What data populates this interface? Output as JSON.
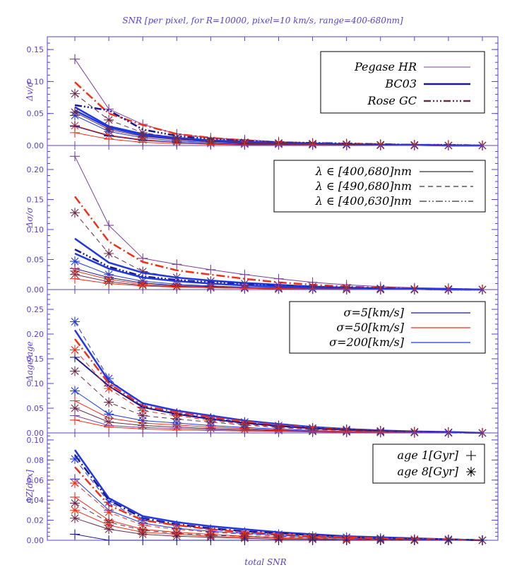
{
  "title": "SNR [per pixel, for R=10000, pixel=10 km/s, range=400-680nm]",
  "xlabel": "total SNR",
  "colors": {
    "axis": "#5a3fd0",
    "purple": "#7b3f9e",
    "navy": "#1a1a8c",
    "red": "#f03018",
    "blue": "#2038e0",
    "brown": "#6b2a4a"
  },
  "legends": {
    "models": [
      "Pegase HR",
      "BC03",
      "Rose GC"
    ],
    "ranges": [
      "λ ∈ [400,680]nm",
      "λ ∈ [490,680]nm",
      "λ ∈ [400,630]nm"
    ],
    "sigmas": [
      "σ=5[km/s]",
      "σ=50[km/s]",
      "σ=200[km/s]"
    ],
    "ages": [
      "age 1[Gyr]",
      "age 8[Gyr]"
    ]
  },
  "chart_data": [
    {
      "type": "line",
      "ylabel": "Δv/σ",
      "ylim": [
        0,
        0.17
      ],
      "yticks": [
        "0.00",
        "0.05",
        "0.10",
        "0.15"
      ],
      "x": [
        1,
        2,
        3,
        4,
        5,
        6,
        7,
        8,
        9,
        10,
        11,
        12,
        13
      ],
      "series": [
        {
          "color": "purple",
          "style": "solid",
          "width": 1,
          "marker": "plus",
          "values": [
            0.135,
            0.057,
            0.033,
            0.018,
            0.012,
            0.009,
            0.006,
            0.004,
            0.003,
            0.002,
            0.001,
            0.001,
            0.0
          ]
        },
        {
          "color": "red",
          "style": "dashdot",
          "width": 2.5,
          "marker": "none",
          "values": [
            0.099,
            0.05,
            0.032,
            0.018,
            0.012,
            0.008,
            0.005,
            0.004,
            0.003,
            0.002,
            0.001,
            0.001,
            0.0
          ]
        },
        {
          "color": "navy",
          "style": "dashdot3",
          "width": 2.5,
          "marker": "none",
          "values": [
            0.063,
            0.055,
            0.025,
            0.015,
            0.01,
            0.007,
            0.005,
            0.004,
            0.003,
            0.002,
            0.001,
            0.001,
            0.0
          ]
        },
        {
          "color": "blue",
          "style": "solid",
          "width": 2.5,
          "marker": "none",
          "values": [
            0.06,
            0.03,
            0.018,
            0.012,
            0.008,
            0.006,
            0.004,
            0.003,
            0.002,
            0.001,
            0.001,
            0.0,
            0.0
          ]
        },
        {
          "color": "blue",
          "style": "solid",
          "width": 2.5,
          "marker": "none",
          "values": [
            0.055,
            0.028,
            0.016,
            0.01,
            0.007,
            0.005,
            0.003,
            0.002,
            0.002,
            0.001,
            0.001,
            0.0,
            0.0
          ]
        },
        {
          "color": "brown",
          "style": "dashed",
          "width": 1,
          "marker": "star",
          "values": [
            0.081,
            0.04,
            0.02,
            0.012,
            0.008,
            0.005,
            0.004,
            0.003,
            0.002,
            0.001,
            0.001,
            0.0,
            0.0
          ]
        },
        {
          "color": "blue",
          "style": "solid",
          "width": 1,
          "marker": "star",
          "values": [
            0.047,
            0.022,
            0.012,
            0.007,
            0.005,
            0.003,
            0.002,
            0.002,
            0.001,
            0.001,
            0.0,
            0.0,
            0.0
          ]
        },
        {
          "color": "red",
          "style": "solid",
          "width": 1,
          "marker": "star",
          "values": [
            0.031,
            0.016,
            0.009,
            0.005,
            0.003,
            0.002,
            0.002,
            0.001,
            0.001,
            0.0,
            0.0,
            0.0,
            0.0
          ]
        },
        {
          "color": "navy",
          "style": "solid",
          "width": 1,
          "marker": "plus",
          "values": [
            0.03,
            0.015,
            0.008,
            0.005,
            0.003,
            0.002,
            0.002,
            0.001,
            0.001,
            0.0,
            0.0,
            0.0,
            0.0
          ]
        },
        {
          "color": "brown",
          "style": "solid",
          "width": 1,
          "marker": "star",
          "values": [
            0.052,
            0.025,
            0.014,
            0.009,
            0.006,
            0.004,
            0.003,
            0.002,
            0.001,
            0.001,
            0.0,
            0.0,
            0.0
          ]
        },
        {
          "color": "red",
          "style": "solid",
          "width": 1,
          "marker": "plus",
          "values": [
            0.02,
            0.01,
            0.005,
            0.003,
            0.002,
            0.001,
            0.001,
            0.001,
            0.0,
            0.0,
            0.0,
            0.0,
            0.0
          ]
        }
      ]
    },
    {
      "type": "line",
      "ylabel": "Δσ/σ",
      "ylim": [
        0,
        0.24
      ],
      "yticks": [
        "0.00",
        "0.05",
        "0.10",
        "0.15",
        "0.20"
      ],
      "x": [
        1,
        2,
        3,
        4,
        5,
        6,
        7,
        8,
        9,
        10,
        11,
        12,
        13
      ],
      "series": [
        {
          "color": "purple",
          "style": "solid",
          "width": 1,
          "marker": "plus",
          "values": [
            0.222,
            0.107,
            0.052,
            0.042,
            0.033,
            0.025,
            0.018,
            0.012,
            0.008,
            0.005,
            0.003,
            0.002,
            0.0
          ]
        },
        {
          "color": "red",
          "style": "dashdot",
          "width": 2.5,
          "marker": "none",
          "values": [
            0.155,
            0.08,
            0.046,
            0.032,
            0.025,
            0.018,
            0.012,
            0.008,
            0.005,
            0.003,
            0.002,
            0.001,
            0.0
          ]
        },
        {
          "color": "brown",
          "style": "dashed",
          "width": 1,
          "marker": "star",
          "values": [
            0.128,
            0.06,
            0.03,
            0.02,
            0.014,
            0.01,
            0.007,
            0.005,
            0.003,
            0.002,
            0.001,
            0.001,
            0.0
          ]
        },
        {
          "color": "blue",
          "style": "solid",
          "width": 2.5,
          "marker": "none",
          "values": [
            0.085,
            0.045,
            0.028,
            0.02,
            0.015,
            0.011,
            0.008,
            0.005,
            0.003,
            0.002,
            0.001,
            0.001,
            0.0
          ]
        },
        {
          "color": "navy",
          "style": "dashdot3",
          "width": 2.5,
          "marker": "none",
          "values": [
            0.067,
            0.038,
            0.022,
            0.016,
            0.012,
            0.009,
            0.006,
            0.004,
            0.003,
            0.002,
            0.001,
            0.0,
            0.0
          ]
        },
        {
          "color": "blue",
          "style": "solid",
          "width": 2.5,
          "marker": "none",
          "values": [
            0.06,
            0.035,
            0.02,
            0.014,
            0.01,
            0.007,
            0.005,
            0.003,
            0.002,
            0.001,
            0.001,
            0.0,
            0.0
          ]
        },
        {
          "color": "blue",
          "style": "solid",
          "width": 1,
          "marker": "star",
          "values": [
            0.047,
            0.025,
            0.014,
            0.009,
            0.006,
            0.004,
            0.003,
            0.002,
            0.001,
            0.001,
            0.0,
            0.0,
            0.0
          ]
        },
        {
          "color": "navy",
          "style": "solid",
          "width": 1,
          "marker": "plus",
          "values": [
            0.035,
            0.02,
            0.011,
            0.007,
            0.005,
            0.003,
            0.002,
            0.001,
            0.001,
            0.0,
            0.0,
            0.0,
            0.0
          ]
        },
        {
          "color": "red",
          "style": "solid",
          "width": 1,
          "marker": "star",
          "values": [
            0.031,
            0.017,
            0.009,
            0.006,
            0.004,
            0.003,
            0.002,
            0.001,
            0.001,
            0.0,
            0.0,
            0.0,
            0.0
          ]
        },
        {
          "color": "brown",
          "style": "solid",
          "width": 1,
          "marker": "star",
          "values": [
            0.025,
            0.013,
            0.007,
            0.005,
            0.003,
            0.002,
            0.001,
            0.001,
            0.0,
            0.0,
            0.0,
            0.0,
            0.0
          ]
        },
        {
          "color": "red",
          "style": "solid",
          "width": 1,
          "marker": "plus",
          "values": [
            0.018,
            0.01,
            0.006,
            0.004,
            0.003,
            0.002,
            0.001,
            0.001,
            0.0,
            0.0,
            0.0,
            0.0,
            0.0
          ]
        }
      ]
    },
    {
      "type": "line",
      "ylabel": "Δage/age",
      "ylim": [
        0,
        0.29
      ],
      "yticks": [
        "0.00",
        "0.05",
        "0.10",
        "0.15",
        "0.20",
        "0.25"
      ],
      "x": [
        1,
        2,
        3,
        4,
        5,
        6,
        7,
        8,
        9,
        10,
        11,
        12,
        13
      ],
      "series": [
        {
          "color": "blue",
          "style": "solid",
          "width": 2.5,
          "marker": "none",
          "values": [
            0.208,
            0.105,
            0.06,
            0.045,
            0.035,
            0.025,
            0.018,
            0.012,
            0.008,
            0.005,
            0.003,
            0.002,
            0.0
          ]
        },
        {
          "color": "blue",
          "style": "dashed",
          "width": 1,
          "marker": "star",
          "values": [
            0.225,
            0.11,
            0.052,
            0.04,
            0.03,
            0.022,
            0.015,
            0.01,
            0.007,
            0.004,
            0.002,
            0.001,
            0.0
          ]
        },
        {
          "color": "red",
          "style": "dashdot",
          "width": 2.5,
          "marker": "none",
          "values": [
            0.19,
            0.1,
            0.055,
            0.042,
            0.032,
            0.023,
            0.016,
            0.011,
            0.007,
            0.004,
            0.002,
            0.001,
            0.0
          ]
        },
        {
          "color": "navy",
          "style": "solid",
          "width": 2,
          "marker": "plus",
          "values": [
            0.153,
            0.095,
            0.052,
            0.038,
            0.028,
            0.02,
            0.014,
            0.009,
            0.006,
            0.004,
            0.002,
            0.001,
            0.0
          ]
        },
        {
          "color": "red",
          "style": "dashed",
          "width": 1,
          "marker": "star",
          "values": [
            0.168,
            0.09,
            0.045,
            0.035,
            0.025,
            0.018,
            0.012,
            0.008,
            0.005,
            0.003,
            0.002,
            0.001,
            0.0
          ]
        },
        {
          "color": "brown",
          "style": "dashed",
          "width": 1,
          "marker": "star",
          "values": [
            0.125,
            0.062,
            0.035,
            0.028,
            0.022,
            0.016,
            0.011,
            0.007,
            0.005,
            0.003,
            0.002,
            0.001,
            0.0
          ]
        },
        {
          "color": "blue",
          "style": "solid",
          "width": 1,
          "marker": "star",
          "values": [
            0.085,
            0.038,
            0.025,
            0.02,
            0.015,
            0.011,
            0.008,
            0.005,
            0.003,
            0.002,
            0.001,
            0.001,
            0.0
          ]
        },
        {
          "color": "red",
          "style": "solid",
          "width": 1,
          "marker": "plus",
          "values": [
            0.065,
            0.03,
            0.02,
            0.016,
            0.012,
            0.009,
            0.006,
            0.004,
            0.003,
            0.002,
            0.001,
            0.0,
            0.0
          ]
        },
        {
          "color": "brown",
          "style": "solid",
          "width": 1,
          "marker": "star",
          "values": [
            0.05,
            0.022,
            0.015,
            0.012,
            0.009,
            0.007,
            0.005,
            0.003,
            0.002,
            0.001,
            0.001,
            0.0,
            0.0
          ]
        },
        {
          "color": "purple",
          "style": "solid",
          "width": 1,
          "marker": "plus",
          "values": [
            0.035,
            0.015,
            0.011,
            0.009,
            0.007,
            0.005,
            0.004,
            0.003,
            0.002,
            0.001,
            0.001,
            0.0,
            0.0
          ]
        },
        {
          "color": "red",
          "style": "solid",
          "width": 1,
          "marker": "plus",
          "values": [
            0.026,
            0.012,
            0.008,
            0.006,
            0.005,
            0.004,
            0.003,
            0.002,
            0.001,
            0.001,
            0.0,
            0.0,
            0.0
          ]
        }
      ]
    },
    {
      "type": "line",
      "ylabel": "ΔZ[dex]",
      "ylim": [
        0,
        0.107
      ],
      "yticks": [
        "0.00",
        "0.02",
        "0.04",
        "0.06",
        "0.08",
        "0.10"
      ],
      "x": [
        1,
        2,
        3,
        4,
        5,
        6,
        7,
        8,
        9,
        10,
        11,
        12,
        13
      ],
      "series": [
        {
          "color": "blue",
          "style": "solid",
          "width": 2.5,
          "marker": "none",
          "values": [
            0.09,
            0.042,
            0.024,
            0.018,
            0.014,
            0.011,
            0.008,
            0.006,
            0.004,
            0.003,
            0.002,
            0.001,
            0.0
          ]
        },
        {
          "color": "navy",
          "style": "dashdot",
          "width": 2.5,
          "marker": "none",
          "values": [
            0.085,
            0.04,
            0.022,
            0.016,
            0.012,
            0.009,
            0.007,
            0.005,
            0.003,
            0.002,
            0.001,
            0.001,
            0.0
          ]
        },
        {
          "color": "blue",
          "style": "dashed",
          "width": 1,
          "marker": "star",
          "values": [
            0.081,
            0.038,
            0.02,
            0.015,
            0.011,
            0.008,
            0.006,
            0.004,
            0.003,
            0.002,
            0.001,
            0.001,
            0.0
          ]
        },
        {
          "color": "red",
          "style": "dashdot",
          "width": 2.5,
          "marker": "none",
          "values": [
            0.073,
            0.035,
            0.02,
            0.015,
            0.011,
            0.008,
            0.006,
            0.004,
            0.003,
            0.002,
            0.001,
            0.001,
            0.0
          ]
        },
        {
          "color": "blue",
          "style": "solid",
          "width": 1,
          "marker": "plus",
          "values": [
            0.061,
            0.03,
            0.017,
            0.012,
            0.009,
            0.007,
            0.005,
            0.003,
            0.002,
            0.001,
            0.001,
            0.0,
            0.0
          ]
        },
        {
          "color": "red",
          "style": "dashed",
          "width": 1,
          "marker": "star",
          "values": [
            0.057,
            0.028,
            0.015,
            0.011,
            0.008,
            0.006,
            0.004,
            0.003,
            0.002,
            0.001,
            0.001,
            0.0,
            0.0
          ]
        },
        {
          "color": "red",
          "style": "solid",
          "width": 1,
          "marker": "plus",
          "values": [
            0.043,
            0.02,
            0.011,
            0.008,
            0.006,
            0.004,
            0.003,
            0.002,
            0.001,
            0.001,
            0.0,
            0.0,
            0.0
          ]
        },
        {
          "color": "brown",
          "style": "dashed",
          "width": 1,
          "marker": "star",
          "values": [
            0.037,
            0.018,
            0.01,
            0.007,
            0.005,
            0.004,
            0.003,
            0.002,
            0.001,
            0.001,
            0.0,
            0.0,
            0.0
          ]
        },
        {
          "color": "red",
          "style": "solid",
          "width": 1,
          "marker": "star",
          "values": [
            0.03,
            0.015,
            0.008,
            0.006,
            0.004,
            0.003,
            0.002,
            0.001,
            0.001,
            0.0,
            0.0,
            0.0,
            0.0
          ]
        },
        {
          "color": "brown",
          "style": "solid",
          "width": 1,
          "marker": "star",
          "values": [
            0.022,
            0.011,
            0.006,
            0.004,
            0.003,
            0.002,
            0.001,
            0.001,
            0.0,
            0.0,
            0.0,
            0.0,
            0.0
          ]
        },
        {
          "color": "navy",
          "style": "solid",
          "width": 1,
          "marker": "plus",
          "values": [
            0.006,
            0.0,
            0.0,
            0.0,
            0.0,
            0.0,
            0.0,
            0.0,
            0.0,
            0.0,
            0.0,
            0.0,
            0.0
          ]
        }
      ]
    }
  ]
}
